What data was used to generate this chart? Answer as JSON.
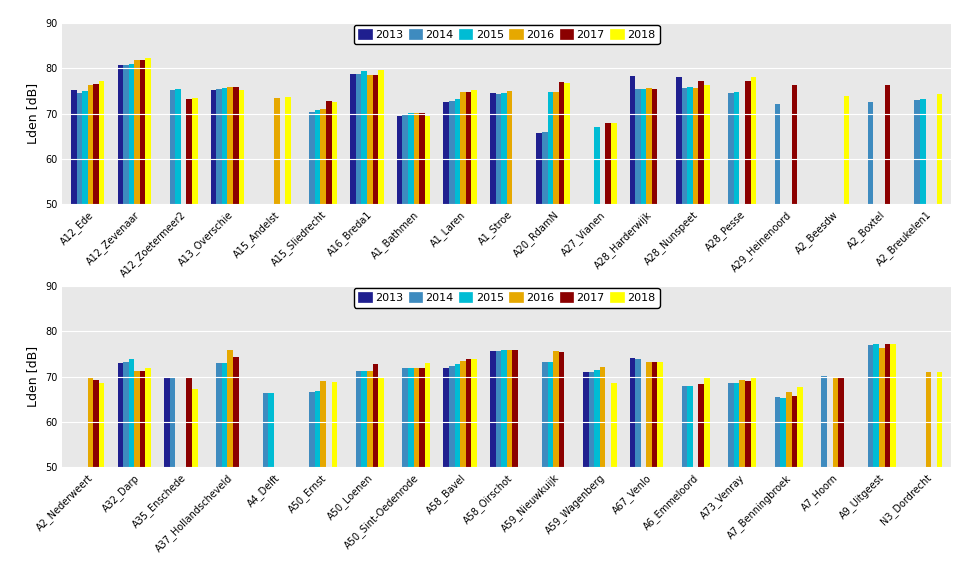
{
  "top_categories": [
    "A12_Ede",
    "A12_Zevenaar",
    "A12_Zoetermeer2",
    "A13_Overschie",
    "A15_Andelst",
    "A15_Sliedrecht",
    "A16_Breda1",
    "A1_Bathmen",
    "A1_Laren",
    "A1_Stroe",
    "A20_RdamN",
    "A27_Vianen",
    "A28_Harderwijk",
    "A28_Nunspeet",
    "A28_Pesse",
    "A29_Heinenoord",
    "A2_Beesdw",
    "A2_Boxtel",
    "A2_Breukelen1"
  ],
  "top_data": {
    "2013": [
      75.2,
      80.7,
      null,
      75.1,
      null,
      null,
      78.7,
      69.5,
      72.5,
      74.6,
      65.7,
      null,
      78.3,
      78.0,
      null,
      null,
      null,
      null,
      null
    ],
    "2014": [
      74.5,
      80.7,
      75.2,
      75.3,
      null,
      70.3,
      78.8,
      69.8,
      72.8,
      74.4,
      65.9,
      null,
      75.3,
      75.7,
      74.5,
      72.0,
      null,
      72.6,
      73.0
    ],
    "2015": [
      75.0,
      80.9,
      75.3,
      75.6,
      null,
      70.8,
      79.3,
      70.1,
      73.1,
      74.5,
      74.7,
      67.0,
      75.3,
      75.9,
      74.8,
      null,
      null,
      null,
      73.2
    ],
    "2016": [
      76.3,
      81.7,
      null,
      75.8,
      73.5,
      71.1,
      78.5,
      70.1,
      74.7,
      74.9,
      74.8,
      null,
      75.7,
      75.7,
      null,
      null,
      null,
      null,
      null
    ],
    "2017": [
      76.5,
      81.7,
      73.2,
      75.8,
      null,
      72.8,
      78.4,
      70.1,
      74.7,
      null,
      77.0,
      68.0,
      75.5,
      77.1,
      77.2,
      76.2,
      null,
      76.2,
      null
    ],
    "2018": [
      77.2,
      82.3,
      73.5,
      75.1,
      73.6,
      72.6,
      79.6,
      69.4,
      75.1,
      null,
      76.8,
      68.0,
      null,
      76.2,
      78.1,
      null,
      73.9,
      null,
      74.2
    ]
  },
  "bot_categories": [
    "A2_Nederweert",
    "A32_Darp",
    "A35_Enschede",
    "A37_Hollandscheveld",
    "A4_Delft",
    "A50_Ernst",
    "A50_Loenen",
    "A50_Sint-Oedenrode",
    "A58_Bavel",
    "A58_Oirschot",
    "A59_Nieuwkuijk",
    "A59_Wagenberg",
    "A67_Venlo",
    "A6_Emmeloord",
    "A73_Venray",
    "A7_Benningbroek",
    "A7_Hoorn",
    "A9_Uitgeest",
    "N3_Dordrecht"
  ],
  "bot_data": {
    "2013": [
      null,
      73.0,
      69.6,
      null,
      null,
      null,
      null,
      null,
      71.8,
      75.7,
      null,
      71.0,
      74.2,
      null,
      null,
      null,
      null,
      null,
      null
    ],
    "2014": [
      null,
      73.3,
      69.8,
      73.1,
      66.5,
      66.7,
      71.2,
      72.0,
      72.4,
      75.7,
      73.2,
      71.1,
      73.8,
      68.0,
      68.5,
      65.5,
      70.2,
      77.0,
      null
    ],
    "2015": [
      null,
      74.0,
      null,
      73.1,
      66.5,
      66.8,
      71.2,
      71.8,
      72.8,
      75.8,
      73.2,
      71.5,
      null,
      68.0,
      68.6,
      65.3,
      null,
      77.1,
      null
    ],
    "2016": [
      69.8,
      71.3,
      null,
      75.9,
      null,
      69.0,
      71.2,
      71.8,
      73.5,
      75.8,
      75.6,
      72.2,
      73.2,
      null,
      69.3,
      66.7,
      70.0,
      76.4,
      71.0
    ],
    "2017": [
      69.3,
      71.2,
      69.8,
      74.4,
      null,
      null,
      72.8,
      71.8,
      74.0,
      75.8,
      75.5,
      null,
      73.2,
      68.3,
      69.0,
      65.8,
      69.9,
      77.2,
      null
    ],
    "2018": [
      68.7,
      71.8,
      67.2,
      null,
      null,
      68.9,
      70.0,
      73.0,
      74.0,
      null,
      null,
      68.7,
      73.3,
      69.8,
      69.8,
      67.7,
      null,
      77.2,
      71.0
    ]
  },
  "years": [
    "2013",
    "2014",
    "2015",
    "2016",
    "2017",
    "2018"
  ],
  "colors": [
    "#1f1f8f",
    "#3e8bbf",
    "#00bcd4",
    "#e6a800",
    "#8b0000",
    "#ffff00"
  ],
  "ylabel": "Lden [dB]",
  "ylim": [
    50,
    90
  ],
  "yticks": [
    50,
    60,
    70,
    80,
    90
  ],
  "bar_width": 0.12,
  "legend_fontsize": 8,
  "tick_fontsize": 7,
  "ylabel_fontsize": 9
}
